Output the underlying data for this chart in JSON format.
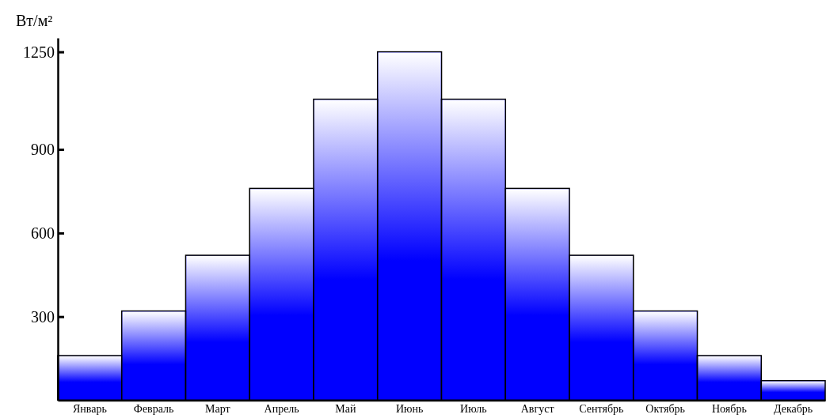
{
  "chart_data": {
    "type": "bar",
    "ylabel": "Вт/м²",
    "categories": [
      "Январь",
      "Февраль",
      "Март",
      "Апрель",
      "Май",
      "Июнь",
      "Июль",
      "Август",
      "Сентябрь",
      "Октябрь",
      "Ноябрь",
      "Декабрь"
    ],
    "values": [
      160,
      320,
      520,
      760,
      1080,
      1250,
      1080,
      760,
      520,
      320,
      160,
      70
    ],
    "color": "#0000ff",
    "ylim": [
      0,
      1300
    ],
    "yticks": [
      300,
      600,
      900,
      1250
    ]
  }
}
